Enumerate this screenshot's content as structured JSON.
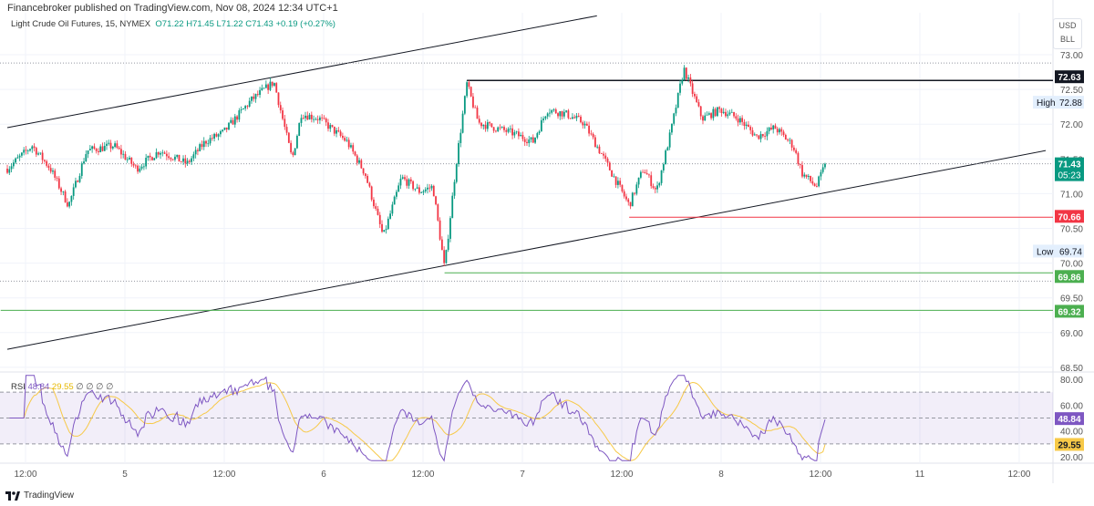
{
  "header": {
    "published": "Financebroker published on TradingView.com, Nov 08, 2024 12:34 UTC+1"
  },
  "legend": {
    "symbol": "Light Crude Oil Futures, 15, NYMEX",
    "open": "O71.22",
    "high": "H71.45",
    "low": "L71.22",
    "close": "C71.43",
    "change": "+0.19 (+0.27%)"
  },
  "currency": {
    "unit": "USD",
    "sub": "BLL"
  },
  "rsi_legend": {
    "label": "RSI",
    "value": "48.84",
    "ma": "29.55",
    "extras": [
      "∅",
      "∅",
      "∅",
      "∅"
    ]
  },
  "footer": {
    "brand": "TradingView"
  },
  "colors": {
    "up": "#089981",
    "down": "#f23645",
    "rsi": "#7e57c2",
    "rsi_ma": "#f7c948"
  },
  "chart_data": {
    "type": "candlestick",
    "symbol": "Light Crude Oil Futures, 15, NYMEX",
    "x_unit": "hours since Nov 4 12:00",
    "price_keyframes": [
      [
        -2.2,
        71.36
      ],
      [
        0.8,
        71.69
      ],
      [
        3,
        71.36
      ],
      [
        5.2,
        70.83
      ],
      [
        7.4,
        71.62
      ],
      [
        10.7,
        71.69
      ],
      [
        13.4,
        71.36
      ],
      [
        16.2,
        71.62
      ],
      [
        19.5,
        71.43
      ],
      [
        21.7,
        71.75
      ],
      [
        23.9,
        71.88
      ],
      [
        27.2,
        72.34
      ],
      [
        30,
        72.61
      ],
      [
        32.2,
        71.49
      ],
      [
        33.3,
        72.15
      ],
      [
        35.5,
        72.08
      ],
      [
        38.8,
        71.75
      ],
      [
        41,
        71.29
      ],
      [
        43.2,
        70.38
      ],
      [
        45.4,
        71.23
      ],
      [
        47.6,
        71.03
      ],
      [
        49.2,
        71.1
      ],
      [
        50.6,
        69.92
      ],
      [
        52,
        71.43
      ],
      [
        53.3,
        72.58
      ],
      [
        54.7,
        72.02
      ],
      [
        58.6,
        71.88
      ],
      [
        61.3,
        71.75
      ],
      [
        63,
        72.21
      ],
      [
        65.2,
        72.15
      ],
      [
        67.4,
        72.02
      ],
      [
        69.6,
        71.56
      ],
      [
        72.9,
        70.83
      ],
      [
        74.6,
        71.36
      ],
      [
        76.2,
        71.03
      ],
      [
        77.9,
        71.88
      ],
      [
        79.5,
        72.8
      ],
      [
        81.7,
        72.08
      ],
      [
        83.9,
        72.21
      ],
      [
        86.1,
        72.08
      ],
      [
        88.3,
        71.82
      ],
      [
        90.5,
        71.95
      ],
      [
        92.7,
        71.69
      ],
      [
        93.8,
        71.29
      ],
      [
        95.5,
        71.1
      ],
      [
        96.6,
        71.43
      ]
    ],
    "x_ticks": [
      {
        "t": 0,
        "label": "12:00"
      },
      {
        "t": 12,
        "label": "5"
      },
      {
        "t": 24,
        "label": "12:00"
      },
      {
        "t": 36,
        "label": "6"
      },
      {
        "t": 48,
        "label": "12:00"
      },
      {
        "t": 60,
        "label": "7"
      },
      {
        "t": 72,
        "label": "12:00"
      },
      {
        "t": 84,
        "label": "8"
      },
      {
        "t": 96,
        "label": "12:00"
      },
      {
        "t": 108,
        "label": "11"
      },
      {
        "t": 120,
        "label": "12:00"
      }
    ],
    "y_ticks": [
      "73.00",
      "72.50",
      "72.00",
      "71.50",
      "71.00",
      "70.50",
      "70.00",
      "69.50",
      "69.00",
      "68.50"
    ],
    "ylim": [
      68.4,
      73.7
    ],
    "levels": [
      {
        "price": 72.63,
        "label": "72.63",
        "color": "#131722",
        "from": 53.3,
        "style": "solid"
      },
      {
        "price": 70.66,
        "label": "70.66",
        "color": "#f23645",
        "from": 72.9,
        "style": "solid"
      },
      {
        "price": 69.86,
        "label": "69.86",
        "color": "#4caf50",
        "from": 50.6,
        "style": "solid"
      },
      {
        "price": 69.32,
        "label": "69.32",
        "color": "#4caf50",
        "from": -3,
        "style": "solid"
      }
    ],
    "high": {
      "price": 72.88,
      "label": "High",
      "value": "72.88"
    },
    "low": {
      "price": 69.74,
      "label": "Low",
      "value": "69.74"
    },
    "last": {
      "price": 71.43,
      "label": "71.43",
      "countdown": "05:23"
    },
    "trendlines": [
      {
        "p1": [
          -2.2,
          71.95
        ],
        "p2": [
          69,
          73.56
        ]
      },
      {
        "p1": [
          -2.2,
          68.76
        ],
        "p2": [
          123.2,
          71.62
        ]
      }
    ],
    "rsi": {
      "ticks": [
        "80.00",
        "60.00",
        "40.00",
        "20.00"
      ],
      "band": [
        30,
        70
      ],
      "mid": 50,
      "last": "48.84",
      "ma_last": "29.55",
      "ylim": [
        17,
        83
      ]
    }
  }
}
